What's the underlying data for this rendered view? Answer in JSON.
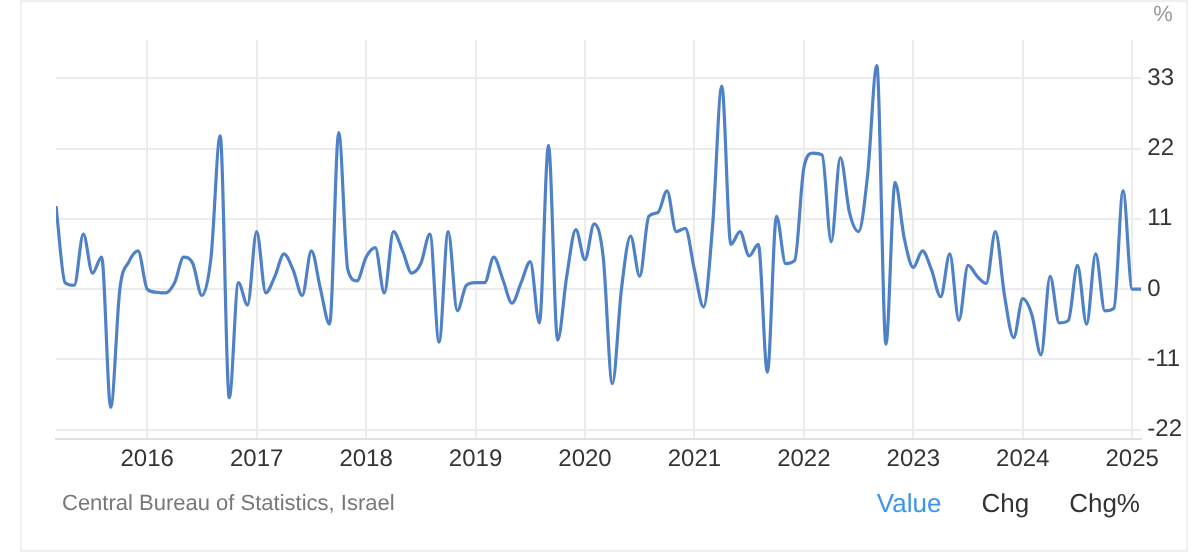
{
  "chart_data": {
    "type": "line",
    "ylabel": "%",
    "x": [
      "2015-03",
      "2015-04",
      "2015-05",
      "2015-06",
      "2015-07",
      "2015-08",
      "2015-09",
      "2015-10",
      "2015-11",
      "2015-12",
      "2016-01",
      "2016-02",
      "2016-03",
      "2016-04",
      "2016-05",
      "2016-06",
      "2016-07",
      "2016-08",
      "2016-09",
      "2016-10",
      "2016-11",
      "2016-12",
      "2017-01",
      "2017-02",
      "2017-03",
      "2017-04",
      "2017-05",
      "2017-06",
      "2017-07",
      "2017-08",
      "2017-09",
      "2017-10",
      "2017-11",
      "2017-12",
      "2018-01",
      "2018-02",
      "2018-03",
      "2018-04",
      "2018-05",
      "2018-06",
      "2018-07",
      "2018-08",
      "2018-09",
      "2018-10",
      "2018-11",
      "2018-12",
      "2019-01",
      "2019-02",
      "2019-03",
      "2019-04",
      "2019-05",
      "2019-06",
      "2019-07",
      "2019-08",
      "2019-09",
      "2019-10",
      "2019-11",
      "2019-12",
      "2020-01",
      "2020-02",
      "2020-03",
      "2020-04",
      "2020-05",
      "2020-06",
      "2020-07",
      "2020-08",
      "2020-09",
      "2020-10",
      "2020-11",
      "2020-12",
      "2021-01",
      "2021-02",
      "2021-03",
      "2021-04",
      "2021-05",
      "2021-06",
      "2021-07",
      "2021-08",
      "2021-09",
      "2021-10",
      "2021-11",
      "2021-12",
      "2022-01",
      "2022-02",
      "2022-03",
      "2022-04",
      "2022-05",
      "2022-06",
      "2022-07",
      "2022-08",
      "2022-09",
      "2022-10",
      "2022-11",
      "2022-12",
      "2023-01",
      "2023-02",
      "2023-03",
      "2023-04",
      "2023-05",
      "2023-06",
      "2023-07",
      "2023-08",
      "2023-09",
      "2023-10",
      "2023-11",
      "2023-12",
      "2024-01",
      "2024-02",
      "2024-03",
      "2024-04",
      "2024-05",
      "2024-06",
      "2024-07",
      "2024-08",
      "2024-09",
      "2024-10",
      "2024-11",
      "2024-12",
      "2025-01",
      "2025-02"
    ],
    "series": [
      {
        "color": "#4f81c7",
        "values": [
          13,
          1,
          0.6,
          8.6,
          2.5,
          5,
          -18.5,
          0,
          4.3,
          6,
          0,
          -0.5,
          -0.6,
          1,
          5,
          4,
          -1,
          5,
          24,
          -17,
          1,
          -2.5,
          9,
          -0.6,
          2,
          5.5,
          3,
          -1,
          6,
          0,
          -5.5,
          24.5,
          3,
          1.3,
          5,
          6.5,
          -0.6,
          9,
          6,
          2.5,
          4,
          8.6,
          -8.3,
          9,
          -3.4,
          0.6,
          1,
          1,
          5,
          1.5,
          -2.2,
          1,
          4.3,
          -5.3,
          22.5,
          -8,
          2,
          9.3,
          4.6,
          10.2,
          5,
          -14.8,
          0,
          8.3,
          2,
          11.4,
          12,
          15.4,
          9,
          9.5,
          3,
          -2.8,
          10,
          31.8,
          7,
          9,
          5.2,
          7,
          -13,
          11.4,
          4,
          4.5,
          19,
          21.3,
          21,
          7.4,
          20.6,
          12,
          9,
          18,
          35,
          -8.6,
          16.7,
          8,
          3.4,
          6,
          3,
          -1.2,
          5.5,
          -4.9,
          3.7,
          2,
          0.9,
          9,
          -1,
          -7.6,
          -1.5,
          -4,
          -10.3,
          2,
          -5.3,
          -4.9,
          3.7,
          -5.5,
          5.5,
          -3.4,
          -3,
          15.4,
          0,
          0
        ]
      }
    ],
    "xlim": [
      "2015-03",
      "2025-02"
    ],
    "xticks": [
      "2016",
      "2017",
      "2018",
      "2019",
      "2020",
      "2021",
      "2022",
      "2023",
      "2024",
      "2025"
    ],
    "ylim": [
      -23.5,
      39
    ],
    "yticks": [
      -22,
      -11,
      0,
      11,
      22,
      33
    ],
    "grid": true,
    "legend": false,
    "marker": "none",
    "line_style": "solid",
    "annotations": [
      "Central Bureau of Statistics, Israel",
      "Value",
      "Chg",
      "Chg%"
    ]
  }
}
